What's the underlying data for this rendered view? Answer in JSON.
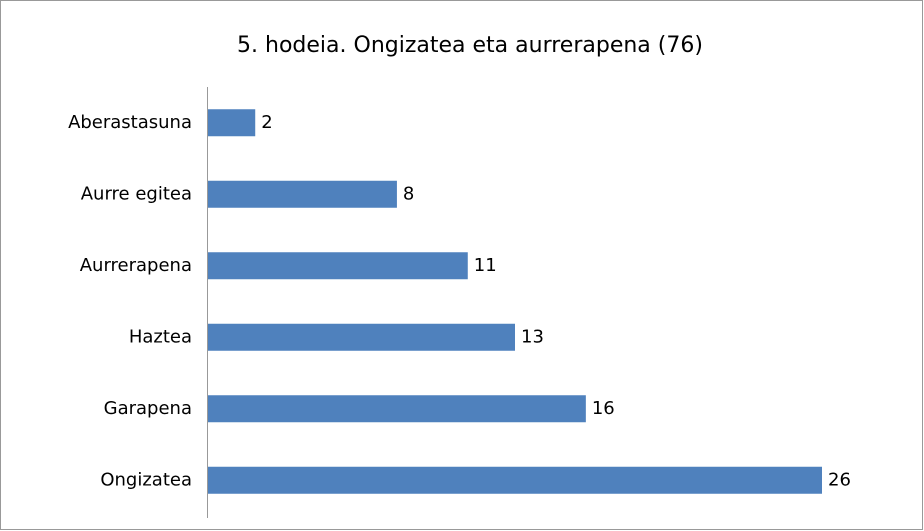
{
  "chart_data": {
    "type": "bar",
    "orientation": "horizontal",
    "title": "5. hodeia. Ongizatea eta aurrerapena (76)",
    "categories": [
      "Aberastasuna",
      "Aurre egitea",
      "Aurrerapena",
      "Haztea",
      "Garapena",
      "Ongizatea"
    ],
    "values": [
      2,
      8,
      11,
      13,
      16,
      26
    ],
    "color": "#4f81bd"
  }
}
